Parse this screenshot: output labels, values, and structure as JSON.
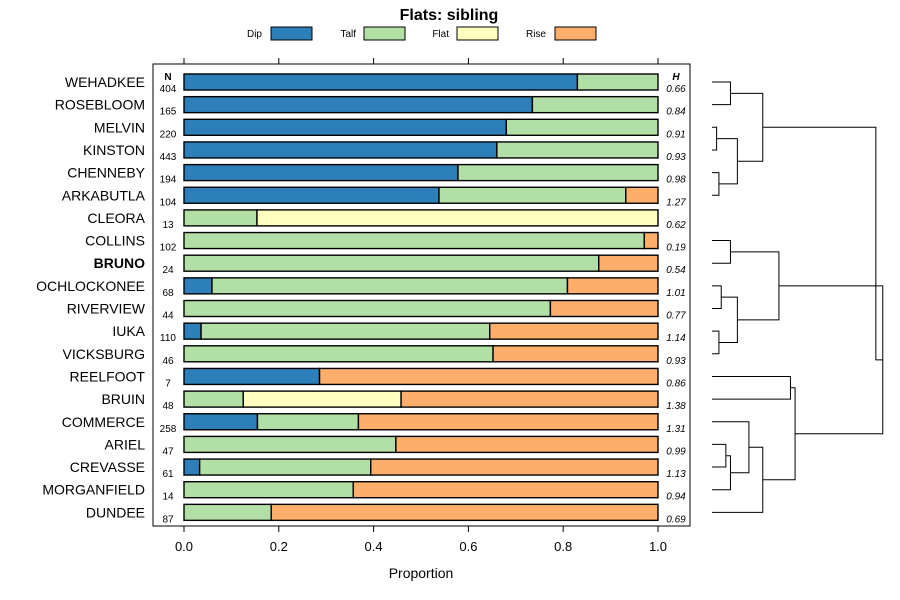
{
  "chart_data": {
    "type": "stacked-bar-horizontal",
    "title": "Flats: sibling",
    "xlabel": "Proportion",
    "xlim": [
      0,
      1
    ],
    "xticks": [
      0.0,
      0.2,
      0.4,
      0.6,
      0.8,
      1.0
    ],
    "xtick_labels": [
      "0.0",
      "0.2",
      "0.4",
      "0.6",
      "0.8",
      "1.0"
    ],
    "n_header": "N",
    "h_header": "H",
    "legend": [
      {
        "name": "Dip",
        "color": "#2c7fb8"
      },
      {
        "name": "Talf",
        "color": "#b2dfa6"
      },
      {
        "name": "Flat",
        "color": "#ffffc0"
      },
      {
        "name": "Rise",
        "color": "#fdae6b"
      }
    ],
    "rows": [
      {
        "name": "WEHADKEE",
        "n": "404",
        "h": "0.66",
        "bold": false,
        "values": [
          0.83,
          0.17,
          0,
          0
        ]
      },
      {
        "name": "ROSEBLOOM",
        "n": "165",
        "h": "0.84",
        "bold": false,
        "values": [
          0.735,
          0.265,
          0,
          0
        ]
      },
      {
        "name": "MELVIN",
        "n": "220",
        "h": "0.91",
        "bold": false,
        "values": [
          0.68,
          0.32,
          0,
          0
        ]
      },
      {
        "name": "KINSTON",
        "n": "443",
        "h": "0.93",
        "bold": false,
        "values": [
          0.66,
          0.34,
          0,
          0
        ]
      },
      {
        "name": "CHENNEBY",
        "n": "194",
        "h": "0.98",
        "bold": false,
        "values": [
          0.578,
          0.422,
          0,
          0
        ]
      },
      {
        "name": "ARKABUTLA",
        "n": "104",
        "h": "1.27",
        "bold": false,
        "values": [
          0.538,
          0.394,
          0,
          0.068
        ]
      },
      {
        "name": "CLEORA",
        "n": "13",
        "h": "0.62",
        "bold": false,
        "values": [
          0,
          0.154,
          0.846,
          0
        ]
      },
      {
        "name": "COLLINS",
        "n": "102",
        "h": "0.19",
        "bold": false,
        "values": [
          0,
          0.971,
          0,
          0.029
        ]
      },
      {
        "name": "BRUNO",
        "n": "24",
        "h": "0.54",
        "bold": true,
        "values": [
          0,
          0.875,
          0,
          0.125
        ]
      },
      {
        "name": "OCHLOCKONEE",
        "n": "68",
        "h": "1.01",
        "bold": false,
        "values": [
          0.059,
          0.75,
          0,
          0.191
        ]
      },
      {
        "name": "RIVERVIEW",
        "n": "44",
        "h": "0.77",
        "bold": false,
        "values": [
          0,
          0.773,
          0,
          0.227
        ]
      },
      {
        "name": "IUKA",
        "n": "110",
        "h": "1.14",
        "bold": false,
        "values": [
          0.036,
          0.609,
          0,
          0.355
        ]
      },
      {
        "name": "VICKSBURG",
        "n": "46",
        "h": "0.93",
        "bold": false,
        "values": [
          0,
          0.652,
          0,
          0.348
        ]
      },
      {
        "name": "REELFOOT",
        "n": "7",
        "h": "0.86",
        "bold": false,
        "values": [
          0.286,
          0,
          0,
          0.714
        ]
      },
      {
        "name": "BRUIN",
        "n": "48",
        "h": "1.38",
        "bold": false,
        "values": [
          0,
          0.125,
          0.333,
          0.542
        ]
      },
      {
        "name": "COMMERCE",
        "n": "258",
        "h": "1.31",
        "bold": false,
        "values": [
          0.155,
          0.213,
          0,
          0.632
        ]
      },
      {
        "name": "ARIEL",
        "n": "47",
        "h": "0.99",
        "bold": false,
        "values": [
          0,
          0.447,
          0,
          0.553
        ]
      },
      {
        "name": "CREVASSE",
        "n": "61",
        "h": "1.13",
        "bold": false,
        "values": [
          0.033,
          0.361,
          0,
          0.606
        ]
      },
      {
        "name": "MORGANFIELD",
        "n": "14",
        "h": "0.94",
        "bold": false,
        "values": [
          0,
          0.357,
          0,
          0.643
        ]
      },
      {
        "name": "DUNDEE",
        "n": "87",
        "h": "0.69",
        "bold": false,
        "values": [
          0,
          0.184,
          0,
          0.816
        ]
      }
    ],
    "dendrogram": {
      "method": "hierarchical clustering of row profiles",
      "merges": [
        {
          "left": "WEHADKEE",
          "right": "ROSEBLOOM",
          "height": 0.08
        },
        {
          "left": "MELVIN",
          "right": "KINSTON",
          "height": 0.02
        },
        {
          "left": "CHENNEBY",
          "right": "ARKABUTLA",
          "height": 0.03
        },
        {
          "left": "MELVIN+KINSTON",
          "right": "CHENNEBY+ARKABUTLA",
          "height": 0.11
        },
        {
          "left": "WEHADKEE+ROSEBLOOM",
          "right": "MELVIN+KINSTON+CHENNEBY+ARKABUTLA",
          "height": 0.22
        },
        {
          "left": "COLLINS",
          "right": "BRUNO",
          "height": 0.08
        },
        {
          "left": "OCHLOCKONEE",
          "right": "RIVERVIEW",
          "height": 0.04
        },
        {
          "left": "IUKA",
          "right": "VICKSBURG",
          "height": 0.03
        },
        {
          "left": "OCHLOCKONEE+RIVERVIEW",
          "right": "IUKA+VICKSBURG",
          "height": 0.11
        },
        {
          "left": "COLLINS+BRUNO",
          "right": "OCHLOCKONEE+RIVERVIEW+IUKA+VICKSBURG",
          "height": 0.29
        },
        {
          "left": "ARIEL",
          "right": "CREVASSE",
          "height": 0.06
        },
        {
          "left": "ARIEL+CREVASSE",
          "right": "MORGANFIELD",
          "height": 0.08
        },
        {
          "left": "COMMERCE",
          "right": "ARIEL+CREVASSE+MORGANFIELD",
          "height": 0.16
        },
        {
          "left": "COMMERCE+ARIEL+CREVASSE+MORGANFIELD",
          "right": "DUNDEE",
          "height": 0.22
        },
        {
          "left": "REELFOOT",
          "right": "BRUIN",
          "height": 0.34
        },
        {
          "left": "REELFOOT+BRUIN",
          "right": "COMMERCE+ARIEL+CREVASSE+MORGANFIELD+DUNDEE",
          "height": 0.36
        },
        {
          "left": "COLLINS...VICKSBURG",
          "right": "REELFOOT...DUNDEE",
          "height": 0.74
        },
        {
          "left": "WEHADKEE...ARKABUTLA",
          "right": "COLLINS...DUNDEE",
          "height": 0.71
        },
        {
          "left": "WEHADKEE...DUNDEE",
          "right": "CLEORA",
          "height": 0.78
        }
      ]
    }
  }
}
